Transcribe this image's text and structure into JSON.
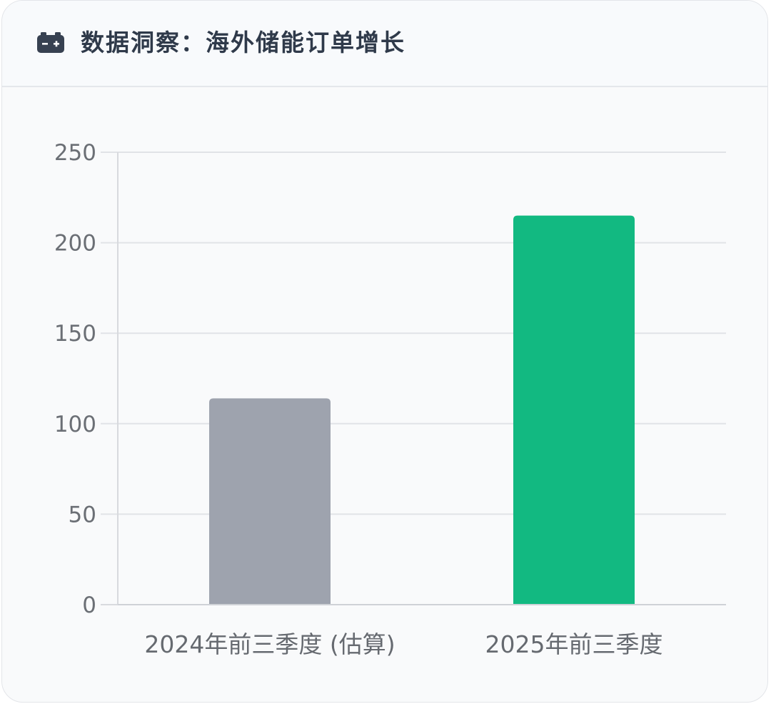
{
  "header": {
    "title": "数据洞察：海外储能订单增长",
    "icon": "battery-icon"
  },
  "chart_data": {
    "type": "bar",
    "categories": [
      "2024年前三季度 (估算)",
      "2025年前三季度"
    ],
    "values": [
      114,
      215
    ],
    "colors": [
      "#9ea3ae",
      "#12b981"
    ],
    "ylim": [
      0,
      250
    ],
    "yticks": [
      0,
      50,
      100,
      150,
      200,
      250
    ],
    "grid": true,
    "title": "",
    "xlabel": "",
    "ylabel": ""
  }
}
